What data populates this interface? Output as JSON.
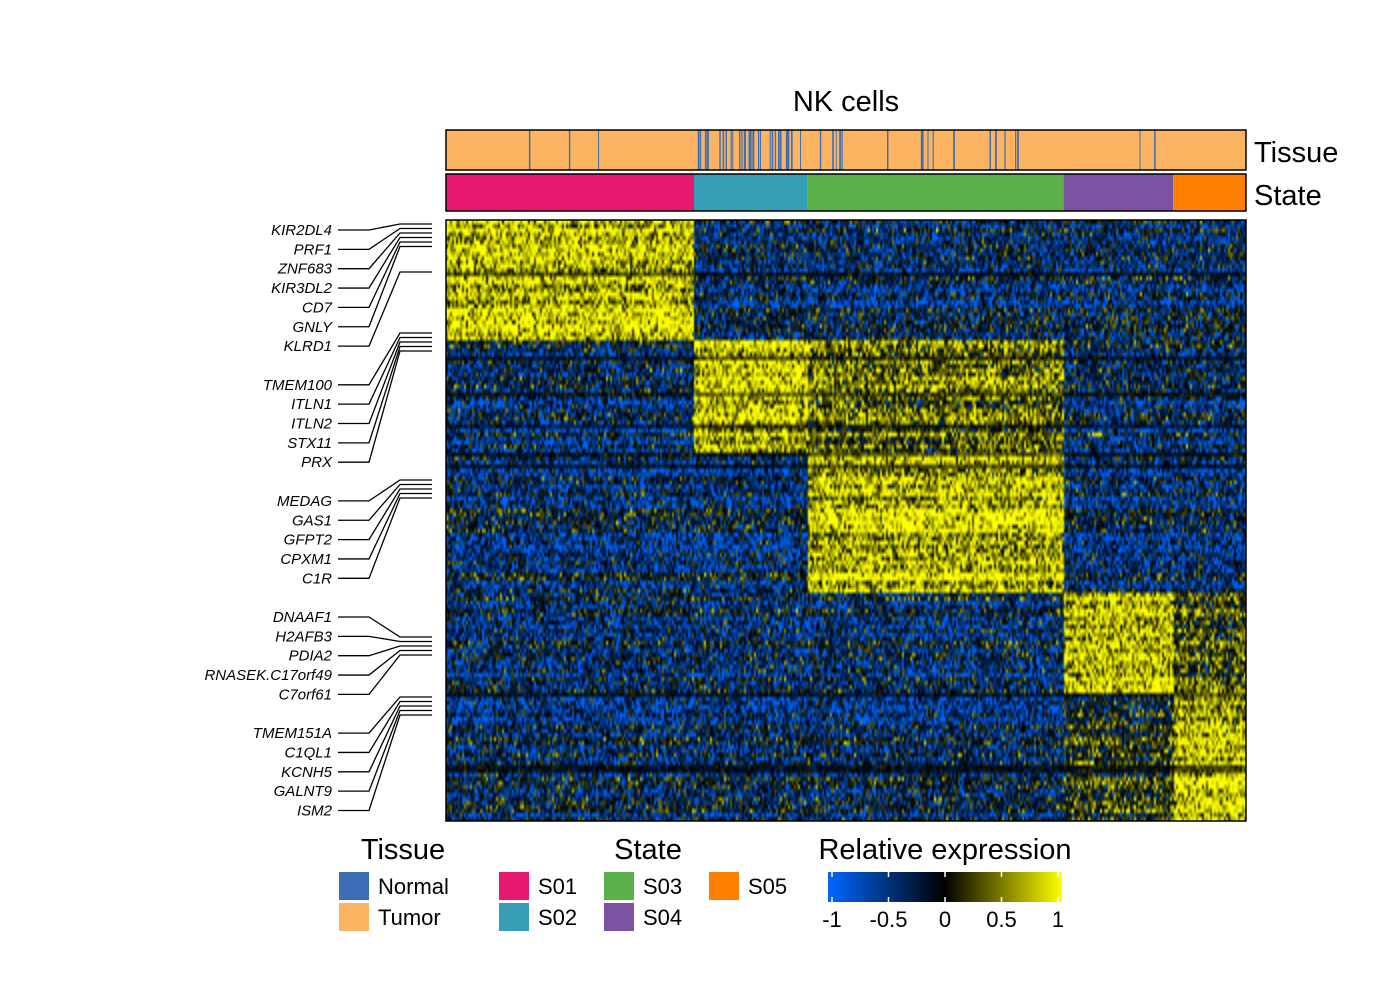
{
  "chart_data": {
    "type": "heatmap",
    "title": "NK cells",
    "annotation_tracks": [
      "Tissue",
      "State"
    ],
    "legends": {
      "tissue": {
        "title": "Tissue",
        "items": [
          {
            "label": "Normal",
            "color": "#3B6EB4"
          },
          {
            "label": "Tumor",
            "color": "#FDB462"
          }
        ]
      },
      "state": {
        "title": "State",
        "items": [
          {
            "label": "S01",
            "color": "#E7196F"
          },
          {
            "label": "S02",
            "color": "#379EB8"
          },
          {
            "label": "S03",
            "color": "#5BB04A"
          },
          {
            "label": "S04",
            "color": "#7C52A3"
          },
          {
            "label": "S05",
            "color": "#FF7F00"
          }
        ]
      },
      "expression": {
        "title": "Relative expression",
        "ticks": [
          "-1",
          "-0.5",
          "0",
          "0.5",
          "1"
        ],
        "range": [
          -1,
          1
        ],
        "colors": [
          "#0066FF",
          "#000000",
          "#FFFF00"
        ]
      }
    },
    "state_fractions": {
      "S01": 0.31,
      "S02": 0.142,
      "S03": 0.32,
      "S04": 0.137,
      "S05": 0.091
    },
    "tissue_normal_fraction_by_state": {
      "S01": 0.01,
      "S02": 0.45,
      "S03": 0.1,
      "S04": 0.02,
      "S05": 0.0
    },
    "gene_groups": [
      {
        "state": "S01",
        "genes": [
          "KIR2DL4",
          "PRF1",
          "ZNF683",
          "KIR3DL2",
          "CD7",
          "GNLY",
          "KLRD1"
        ]
      },
      {
        "state": "S02",
        "genes": [
          "TMEM100",
          "ITLN1",
          "ITLN2",
          "STX11",
          "PRX"
        ]
      },
      {
        "state": "S03",
        "genes": [
          "MEDAG",
          "GAS1",
          "GFPT2",
          "CPXM1",
          "C1R"
        ]
      },
      {
        "state": "S04",
        "genes": [
          "DNAAF1",
          "H2AFB3",
          "PDIA2",
          "RNASEK.C17orf49",
          "C7orf61"
        ]
      },
      {
        "state": "S05",
        "genes": [
          "TMEM151A",
          "C1QL1",
          "KCNH5",
          "GALNT9",
          "ISM2"
        ]
      }
    ]
  }
}
